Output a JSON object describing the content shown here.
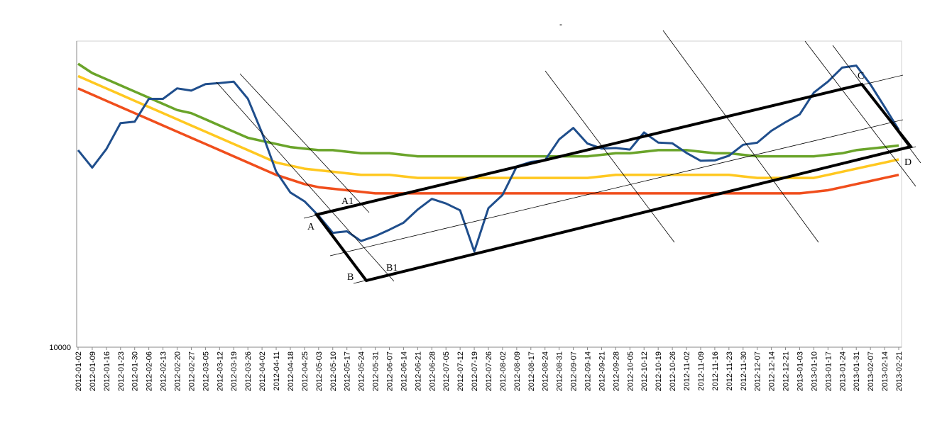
{
  "chart_data": {
    "type": "line",
    "title": "-",
    "y_axis": {
      "label": "10000",
      "scale": "log",
      "grid": false
    },
    "x": [
      "2012-01-02",
      "2012-01-09",
      "2012-01-16",
      "2012-01-23",
      "2012-01-30",
      "2012-02-06",
      "2012-02-13",
      "2012-02-20",
      "2012-02-27",
      "2012-03-05",
      "2012-03-12",
      "2012-03-19",
      "2012-03-26",
      "2012-04-02",
      "2012-04-11",
      "2012-04-18",
      "2012-04-25",
      "2012-05-03",
      "2012-05-10",
      "2012-05-17",
      "2012-05-24",
      "2012-05-31",
      "2012-06-07",
      "2012-06-14",
      "2012-06-21",
      "2012-06-28",
      "2012-07-05",
      "2012-07-12",
      "2012-07-19",
      "2012-07-26",
      "2012-08-02",
      "2012-08-09",
      "2012-08-17",
      "2012-08-24",
      "2012-08-31",
      "2012-09-07",
      "2012-09-14",
      "2012-09-21",
      "2012-09-28",
      "2012-10-05",
      "2012-10-12",
      "2012-10-19",
      "2012-10-26",
      "2012-11-02",
      "2012-11-09",
      "2012-11-16",
      "2012-11-23",
      "2012-11-30",
      "2012-12-07",
      "2012-12-14",
      "2012-12-21",
      "2013-01-03",
      "2013-01-10",
      "2013-01-17",
      "2013-01-24",
      "2013-01-31",
      "2013-02-07",
      "2013-02-14",
      "2013-02-21"
    ],
    "series": [
      {
        "color": "#1f4e8c",
        "level": [
          0.64,
          0.58,
          0.65,
          0.72,
          0.74,
          0.8,
          0.81,
          0.84,
          0.83,
          0.86,
          0.85,
          0.87,
          0.8,
          0.7,
          0.57,
          0.5,
          0.48,
          0.42,
          0.38,
          0.37,
          0.35,
          0.36,
          0.38,
          0.41,
          0.44,
          0.49,
          0.46,
          0.45,
          0.31,
          0.45,
          0.5,
          0.58,
          0.61,
          0.6,
          0.68,
          0.71,
          0.66,
          0.65,
          0.64,
          0.65,
          0.69,
          0.67,
          0.66,
          0.63,
          0.61,
          0.6,
          0.63,
          0.65,
          0.67,
          0.7,
          0.73,
          0.76,
          0.82,
          0.87,
          0.9,
          0.92,
          0.85,
          0.78,
          0.71
        ]
      },
      {
        "color": "#6aa42a",
        "level": [
          0.92,
          0.89,
          0.87,
          0.85,
          0.83,
          0.81,
          0.79,
          0.77,
          0.76,
          0.74,
          0.72,
          0.7,
          0.68,
          0.67,
          0.66,
          0.65,
          0.645,
          0.64,
          0.64,
          0.635,
          0.63,
          0.63,
          0.63,
          0.625,
          0.62,
          0.62,
          0.62,
          0.62,
          0.62,
          0.62,
          0.62,
          0.62,
          0.62,
          0.62,
          0.62,
          0.62,
          0.62,
          0.625,
          0.63,
          0.63,
          0.635,
          0.64,
          0.64,
          0.64,
          0.635,
          0.63,
          0.63,
          0.625,
          0.62,
          0.62,
          0.62,
          0.62,
          0.62,
          0.625,
          0.63,
          0.64,
          0.645,
          0.65,
          0.655
        ]
      },
      {
        "color": "#ffc820",
        "level": [
          0.88,
          0.86,
          0.84,
          0.82,
          0.8,
          0.78,
          0.76,
          0.74,
          0.72,
          0.7,
          0.68,
          0.66,
          0.64,
          0.62,
          0.6,
          0.59,
          0.58,
          0.575,
          0.57,
          0.565,
          0.56,
          0.56,
          0.56,
          0.555,
          0.55,
          0.55,
          0.55,
          0.55,
          0.55,
          0.55,
          0.55,
          0.55,
          0.55,
          0.55,
          0.55,
          0.55,
          0.55,
          0.555,
          0.56,
          0.56,
          0.56,
          0.56,
          0.56,
          0.56,
          0.56,
          0.56,
          0.56,
          0.555,
          0.55,
          0.55,
          0.55,
          0.55,
          0.55,
          0.56,
          0.57,
          0.58,
          0.59,
          0.6,
          0.61
        ]
      },
      {
        "color": "#f04e1c",
        "level": [
          0.84,
          0.82,
          0.8,
          0.78,
          0.76,
          0.74,
          0.72,
          0.7,
          0.68,
          0.66,
          0.64,
          0.62,
          0.6,
          0.58,
          0.56,
          0.545,
          0.53,
          0.52,
          0.515,
          0.51,
          0.505,
          0.5,
          0.5,
          0.5,
          0.5,
          0.5,
          0.5,
          0.5,
          0.5,
          0.5,
          0.5,
          0.5,
          0.5,
          0.5,
          0.5,
          0.5,
          0.5,
          0.5,
          0.5,
          0.5,
          0.5,
          0.5,
          0.5,
          0.5,
          0.5,
          0.5,
          0.5,
          0.5,
          0.5,
          0.5,
          0.5,
          0.5,
          0.505,
          0.51,
          0.52,
          0.53,
          0.54,
          0.55,
          0.56
        ]
      }
    ],
    "annotations": [
      "A1",
      "A",
      "B1",
      "B",
      "C",
      "D"
    ]
  }
}
